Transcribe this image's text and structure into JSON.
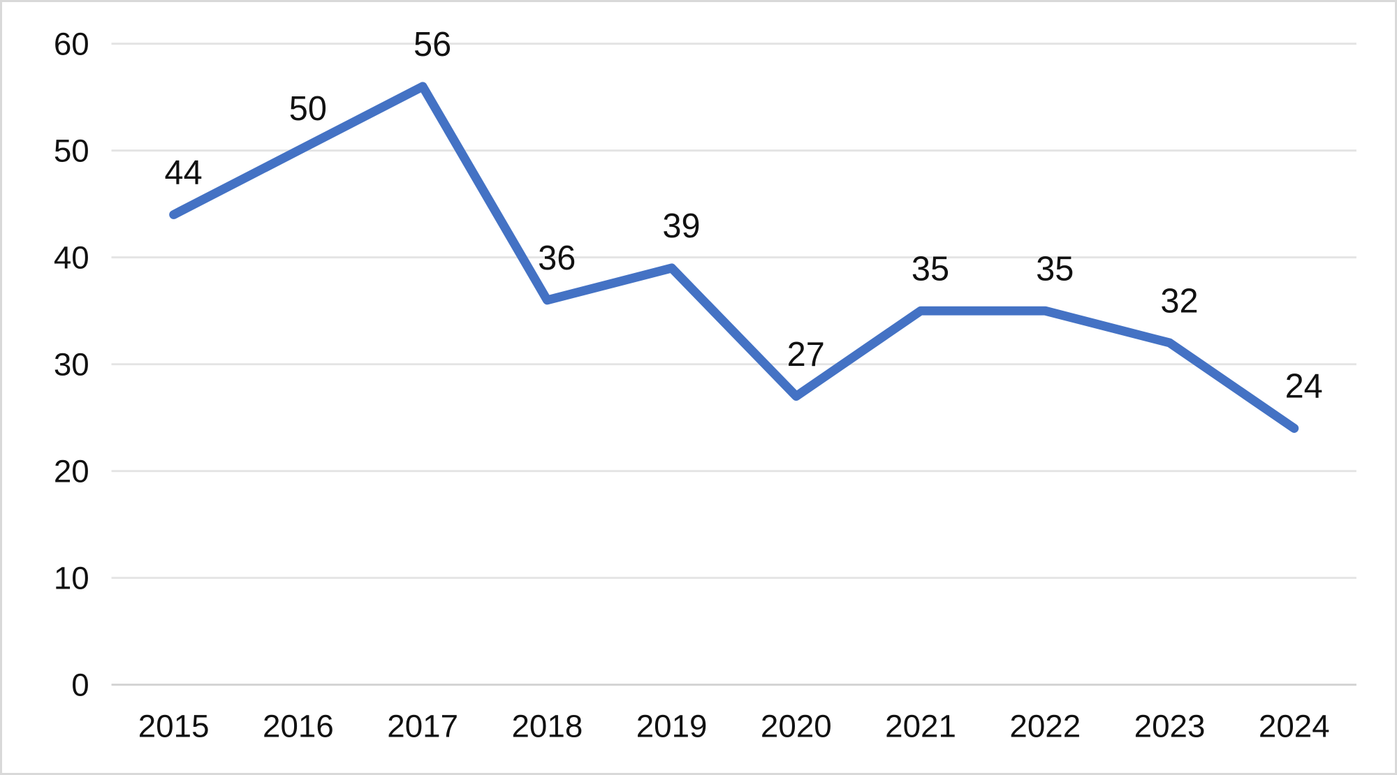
{
  "frame": {
    "background_color": "#ffffff",
    "border_color": "#d9d9d9"
  },
  "chart_data": {
    "type": "line",
    "title": "",
    "categories": [
      "2015",
      "2016",
      "2017",
      "2018",
      "2019",
      "2020",
      "2021",
      "2022",
      "2023",
      "2024"
    ],
    "values": [
      44,
      50,
      56,
      36,
      39,
      27,
      35,
      35,
      32,
      24
    ],
    "data_labels": [
      "44",
      "50",
      "56",
      "36",
      "39",
      "27",
      "35",
      "35",
      "32",
      "24"
    ],
    "xlabel": "",
    "ylabel": "",
    "ylim": [
      0,
      60
    ],
    "y_ticks": [
      0,
      10,
      20,
      30,
      40,
      50,
      60
    ],
    "y_tick_labels": [
      "0",
      "10",
      "20",
      "30",
      "40",
      "50",
      "60"
    ],
    "grid": true,
    "legend": "none",
    "line_color": "#4472C4",
    "line_width": 13,
    "gridline_color": "#e4e4e4",
    "axis_line_color": "#d2d2d2",
    "label_color": "#111111",
    "tick_label_color": "#111111"
  }
}
